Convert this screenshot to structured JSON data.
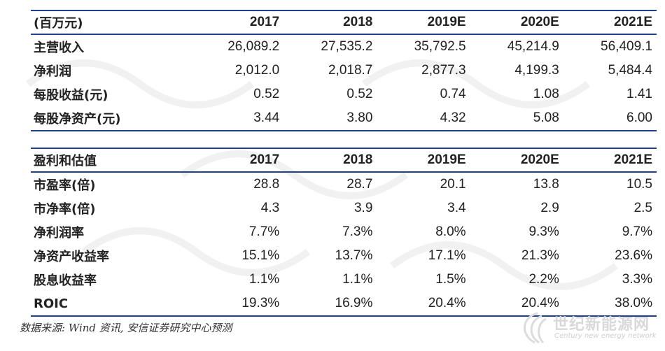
{
  "table1": {
    "header": [
      "(百万元)",
      "2017",
      "2018",
      "2019E",
      "2020E",
      "2021E"
    ],
    "rows": [
      [
        "主营收入",
        "26,089.2",
        "27,535.2",
        "35,792.5",
        "45,214.9",
        "56,409.1"
      ],
      [
        "净利润",
        "2,012.0",
        "2,018.7",
        "2,877.3",
        "4,199.3",
        "5,484.4"
      ],
      [
        "每股收益(元)",
        "0.52",
        "0.52",
        "0.74",
        "1.08",
        "1.41"
      ],
      [
        "每股净资产(元)",
        "3.44",
        "3.80",
        "4.32",
        "5.08",
        "6.00"
      ]
    ]
  },
  "table2": {
    "header": [
      "盈利和估值",
      "2017",
      "2018",
      "2019E",
      "2020E",
      "2021E"
    ],
    "rows": [
      [
        "市盈率(倍)",
        "28.8",
        "28.7",
        "20.1",
        "13.8",
        "10.5"
      ],
      [
        "市净率(倍)",
        "4.3",
        "3.9",
        "3.4",
        "2.9",
        "2.5"
      ],
      [
        "净利润率",
        "7.7%",
        "7.3%",
        "8.0%",
        "9.3%",
        "9.7%"
      ],
      [
        "净资产收益率",
        "15.1%",
        "13.7%",
        "17.1%",
        "21.3%",
        "23.6%"
      ],
      [
        "股息收益率",
        "1.1%",
        "1.1%",
        "1.5%",
        "2.2%",
        "3.3%"
      ],
      [
        "ROIC",
        "19.3%",
        "16.9%",
        "20.4%",
        "20.4%",
        "38.0%"
      ]
    ]
  },
  "source": "数据来源: Wind 资讯, 安信证券研究中心预测",
  "logo": {
    "text": "世纪新能源网",
    "subtext": "Century new energy network"
  },
  "colors": {
    "rule": "#1f3f8f",
    "watermark": "#d9d9d9"
  }
}
